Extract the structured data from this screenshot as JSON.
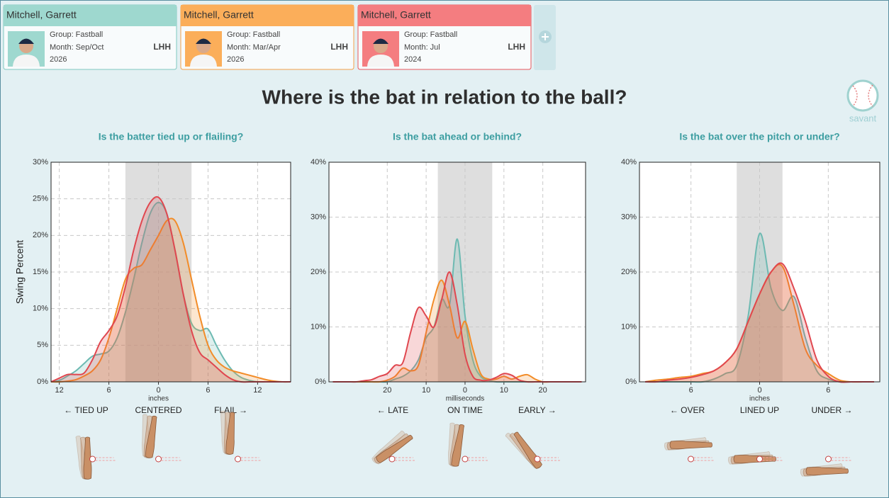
{
  "cards": [
    {
      "name": "Mitchell, Garrett",
      "group": "Group: Fastball",
      "month": "Month: Sep/Oct",
      "year": "2026",
      "hand": "LHH",
      "color": "#9ed8cf",
      "border": "#7fc9c0"
    },
    {
      "name": "Mitchell, Garrett",
      "group": "Group: Fastball",
      "month": "Month: Mar/Apr",
      "year": "2026",
      "hand": "LHH",
      "color": "#fbae5a",
      "border": "#f5a04a"
    },
    {
      "name": "Mitchell, Garrett",
      "group": "Group: Fastball",
      "month": "Month: Jul",
      "year": "2024",
      "hand": "LHH",
      "color": "#f47d80",
      "border": "#e8575d"
    }
  ],
  "title": "Where is the bat in relation to the ball?",
  "logo": "savant",
  "chart_data": [
    {
      "type": "density",
      "subtitle": "Is the batter tied up or flailing?",
      "y_label": "Swing Percent",
      "x_label": "inches",
      "directions": [
        "← TIED UP",
        "CENTERED",
        "FLAIL →"
      ],
      "xlim": [
        -13,
        16
      ],
      "ylim": [
        0,
        30
      ],
      "zone": [
        -4,
        4
      ],
      "grid": true,
      "xticks": [
        {
          "value": -12,
          "label": "12"
        },
        {
          "value": -6,
          "label": "6"
        },
        0,
        6,
        12
      ],
      "yticks": [
        {
          "value": 0,
          "label": "0%"
        },
        {
          "value": 5,
          "label": "5%"
        },
        {
          "value": 10,
          "label": "10%"
        },
        {
          "value": 15,
          "label": "15%"
        },
        {
          "value": 20,
          "label": "20%"
        },
        {
          "value": 25,
          "label": "25%"
        },
        {
          "value": 30,
          "label": "30%"
        }
      ],
      "x": [
        -13,
        -12,
        -11,
        -10,
        -9,
        -8,
        -7,
        -6,
        -5,
        -4,
        -3,
        -2,
        -1,
        0,
        1,
        2,
        3,
        4,
        5,
        6,
        7,
        8,
        9,
        10,
        11,
        12,
        13,
        14,
        15,
        16
      ],
      "series": [
        {
          "color": "#6dbab2",
          "values": [
            0,
            0.2,
            0.8,
            1.5,
            2.5,
            3.5,
            3.8,
            4.2,
            6,
            9.5,
            14,
            19,
            23,
            24.5,
            23,
            18,
            12,
            8,
            7,
            7.2,
            5,
            3,
            1.5,
            0.6,
            0.2,
            0,
            0,
            0,
            0,
            0
          ]
        },
        {
          "color": "#f28c28",
          "values": [
            0,
            0,
            0.1,
            0.3,
            0.8,
            1.5,
            3,
            6,
            10,
            14,
            15.5,
            16,
            18,
            20,
            22,
            22,
            19,
            14,
            9,
            5,
            3,
            2,
            1.5,
            1.2,
            0.9,
            0.6,
            0.3,
            0.1,
            0,
            0
          ]
        },
        {
          "color": "#e0474f",
          "values": [
            0,
            0.5,
            1,
            1,
            1.2,
            3,
            5.5,
            7,
            9,
            13,
            18,
            22,
            24.5,
            25.2,
            23,
            18,
            12,
            7,
            4,
            3,
            2,
            1,
            0.3,
            0,
            0,
            0,
            0,
            0,
            0,
            0
          ]
        }
      ]
    },
    {
      "type": "density",
      "subtitle": "Is the bat ahead or behind?",
      "x_label": "milliseconds",
      "directions": [
        "← LATE",
        "ON TIME",
        "EARLY →"
      ],
      "xlim": [
        -35,
        31
      ],
      "ylim": [
        0,
        40
      ],
      "zone": [
        -7,
        7
      ],
      "grid": true,
      "xticks": [
        {
          "value": -20,
          "label": "20"
        },
        {
          "value": -10,
          "label": "10"
        },
        0,
        10,
        20
      ],
      "yticks": [
        {
          "value": 0,
          "label": "0%"
        },
        {
          "value": 10,
          "label": "10%"
        },
        {
          "value": 20,
          "label": "20%"
        },
        {
          "value": 30,
          "label": "30%"
        },
        {
          "value": 40,
          "label": "40%"
        }
      ],
      "x": [
        -34,
        -32,
        -30,
        -28,
        -26,
        -24,
        -22,
        -20,
        -18,
        -16,
        -14,
        -12,
        -10,
        -8,
        -6,
        -4,
        -2,
        0,
        2,
        4,
        6,
        8,
        10,
        12,
        14,
        16,
        18,
        20,
        22,
        24,
        26,
        28,
        30
      ],
      "series": [
        {
          "color": "#6dbab2",
          "values": [
            0,
            0,
            0,
            0,
            0,
            0,
            0,
            0,
            0.5,
            1,
            2,
            4,
            8,
            10,
            15,
            14,
            26,
            12,
            4,
            1,
            0.3,
            0,
            0,
            0,
            0,
            0,
            0,
            0,
            0,
            0,
            0,
            0,
            0
          ]
        },
        {
          "color": "#f28c28",
          "values": [
            0,
            0,
            0,
            0,
            0,
            0,
            0,
            0.3,
            1,
            2.5,
            2,
            3,
            9,
            15,
            18.5,
            14,
            8,
            11,
            6,
            1.5,
            0.5,
            0.5,
            1,
            0.5,
            1,
            1.3,
            0.5,
            0,
            0,
            0,
            0,
            0,
            0
          ]
        },
        {
          "color": "#e0474f",
          "values": [
            0,
            0,
            0,
            0,
            0.2,
            0.4,
            1,
            1.5,
            3,
            3.5,
            9,
            13.5,
            12,
            10,
            15,
            20,
            14,
            5,
            1,
            0.3,
            0.3,
            0.8,
            1.5,
            1.2,
            0.3,
            0,
            0,
            0,
            0,
            0,
            0,
            0,
            0
          ]
        }
      ]
    },
    {
      "type": "density",
      "subtitle": "Is the bat over the pitch or under?",
      "x_label": "inches",
      "directions": [
        "← OVER",
        "LINED UP",
        "UNDER →"
      ],
      "xlim": [
        -10.5,
        10.5
      ],
      "ylim": [
        0,
        40
      ],
      "zone": [
        -2,
        2
      ],
      "grid": true,
      "xticks": [
        {
          "value": -6,
          "label": "6"
        },
        0,
        6
      ],
      "yticks": [
        {
          "value": 0,
          "label": "0%"
        },
        {
          "value": 10,
          "label": "10%"
        },
        {
          "value": 20,
          "label": "20%"
        },
        {
          "value": 30,
          "label": "30%"
        },
        {
          "value": 40,
          "label": "40%"
        }
      ],
      "x": [
        -10,
        -9,
        -8,
        -7,
        -6,
        -5,
        -4,
        -3,
        -2,
        -1,
        0,
        1,
        2,
        3,
        4,
        5,
        6,
        7,
        8,
        9,
        10
      ],
      "series": [
        {
          "color": "#6dbab2",
          "values": [
            0,
            0,
            0,
            0,
            0,
            0,
            0.5,
            1.5,
            3,
            12,
            27,
            17,
            13,
            15.5,
            8,
            2,
            0.5,
            0,
            0,
            0,
            0
          ]
        },
        {
          "color": "#f28c28",
          "values": [
            0,
            0.3,
            0.5,
            0.8,
            1,
            1.5,
            2,
            3.5,
            6,
            11,
            16,
            20,
            21,
            14,
            6,
            3,
            1.5,
            0.3,
            0,
            0,
            0
          ]
        },
        {
          "color": "#e0474f",
          "values": [
            0,
            0,
            0.3,
            0.5,
            0.8,
            1.3,
            2,
            3.5,
            6,
            11,
            16,
            20,
            21.5,
            17,
            11,
            4,
            1,
            0,
            0,
            0,
            0
          ]
        }
      ]
    }
  ]
}
